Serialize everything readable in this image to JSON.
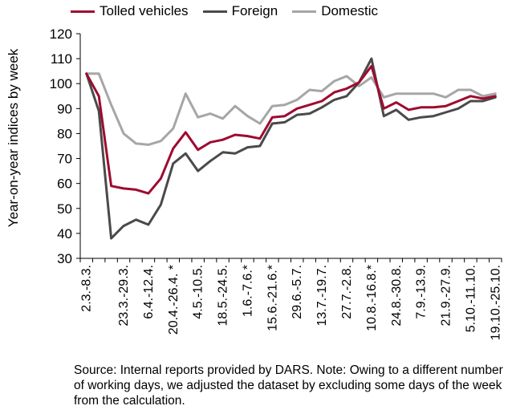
{
  "chart_data": {
    "type": "line",
    "title": "",
    "xlabel": "",
    "ylabel": "Year-on-year indices by week",
    "ylim": [
      30,
      120
    ],
    "yticks": [
      30,
      40,
      50,
      60,
      70,
      80,
      90,
      100,
      110,
      120
    ],
    "grid": false,
    "legend_position": "top",
    "categories": [
      "2.3.-8.3.",
      "",
      "",
      "23.3.-29.3.",
      "",
      "6.4.-12.4.",
      "",
      "20.4.-26.4. *",
      "",
      "4.5.-10.5.",
      "",
      "18.5.-24.5.",
      "",
      "1.6.-7.6.*",
      "",
      "15.6.-21.6.*",
      "",
      "29.6.-5.7.",
      "",
      "13.7.-19.7.",
      "",
      "27.7.-2.8.",
      "",
      "10.8.-16.8.*",
      "",
      "24.8.-30.8.",
      "",
      "7.9.-13.9.",
      "",
      "21.9.-27.9.",
      "",
      "5.10.-11.10.",
      "",
      "19.10.-25.10."
    ],
    "series": [
      {
        "name": "Tolled vehicles",
        "color": "#9e0b2f",
        "values": [
          104,
          95,
          59,
          58,
          57.5,
          56,
          62,
          74,
          80.5,
          73.5,
          76.5,
          77.5,
          79.5,
          79,
          78,
          86.5,
          87,
          90,
          91.5,
          93,
          96.5,
          98,
          100.5,
          107,
          90,
          92.5,
          89.5,
          90.5,
          90.5,
          91,
          93,
          95,
          94,
          95
        ]
      },
      {
        "name": "Foreign",
        "color": "#4a4a4a",
        "values": [
          104,
          89,
          38,
          43,
          45.5,
          43.5,
          51.5,
          68,
          72,
          65,
          69,
          72.5,
          72,
          74.5,
          75,
          84,
          84.5,
          87.5,
          88,
          90.5,
          93.5,
          95,
          100.5,
          110,
          87,
          89.5,
          85.5,
          86.5,
          87,
          88.5,
          90,
          93,
          93,
          94.5
        ]
      },
      {
        "name": "Domestic",
        "color": "#a6a6a6",
        "values": [
          104,
          104,
          91.5,
          80,
          76,
          75.5,
          77,
          82,
          96,
          86.5,
          88,
          86,
          91,
          87,
          84,
          91,
          91.5,
          93.5,
          97.5,
          97,
          101,
          103,
          99,
          102.5,
          94.5,
          96,
          96,
          96,
          96,
          94.5,
          97.5,
          97.5,
          95,
          96
        ]
      }
    ]
  },
  "source_note": "Source: Internal reports provided by DARS. Note: Owing to a different number of working days, we adjusted the dataset by excluding some days of the week from the calculation."
}
